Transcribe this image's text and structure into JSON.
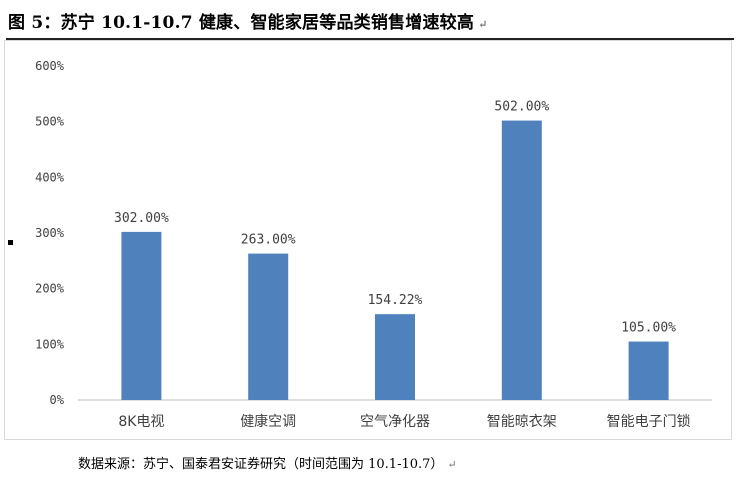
{
  "title": "图  5：苏宁 10.1-10.7 健康、智能家居等品类销售增速较高",
  "source": "数据来源：苏宁、国泰君安证券研究（时间范围为 10.1-10.7）",
  "para_mark": "↵",
  "colors": {
    "bar": "#4f81bd",
    "axis": "#bfbfbf",
    "text": "#404040"
  },
  "chart_data": {
    "type": "bar",
    "title": "",
    "xlabel": "",
    "ylabel": "",
    "categories": [
      "8K电视",
      "健康空调",
      "空气净化器",
      "智能晾衣架",
      "智能电子门锁"
    ],
    "series": [
      {
        "values": [
          302.0,
          263.0,
          154.22,
          502.0,
          105.0
        ]
      }
    ],
    "data_labels": [
      "302.00%",
      "263.00%",
      "154.22%",
      "502.00%",
      "105.00%"
    ],
    "yticks": [
      "0%",
      "100%",
      "200%",
      "300%",
      "400%",
      "500%",
      "600%"
    ],
    "ylim": [
      0,
      600
    ],
    "grid": false,
    "legend": "none"
  }
}
